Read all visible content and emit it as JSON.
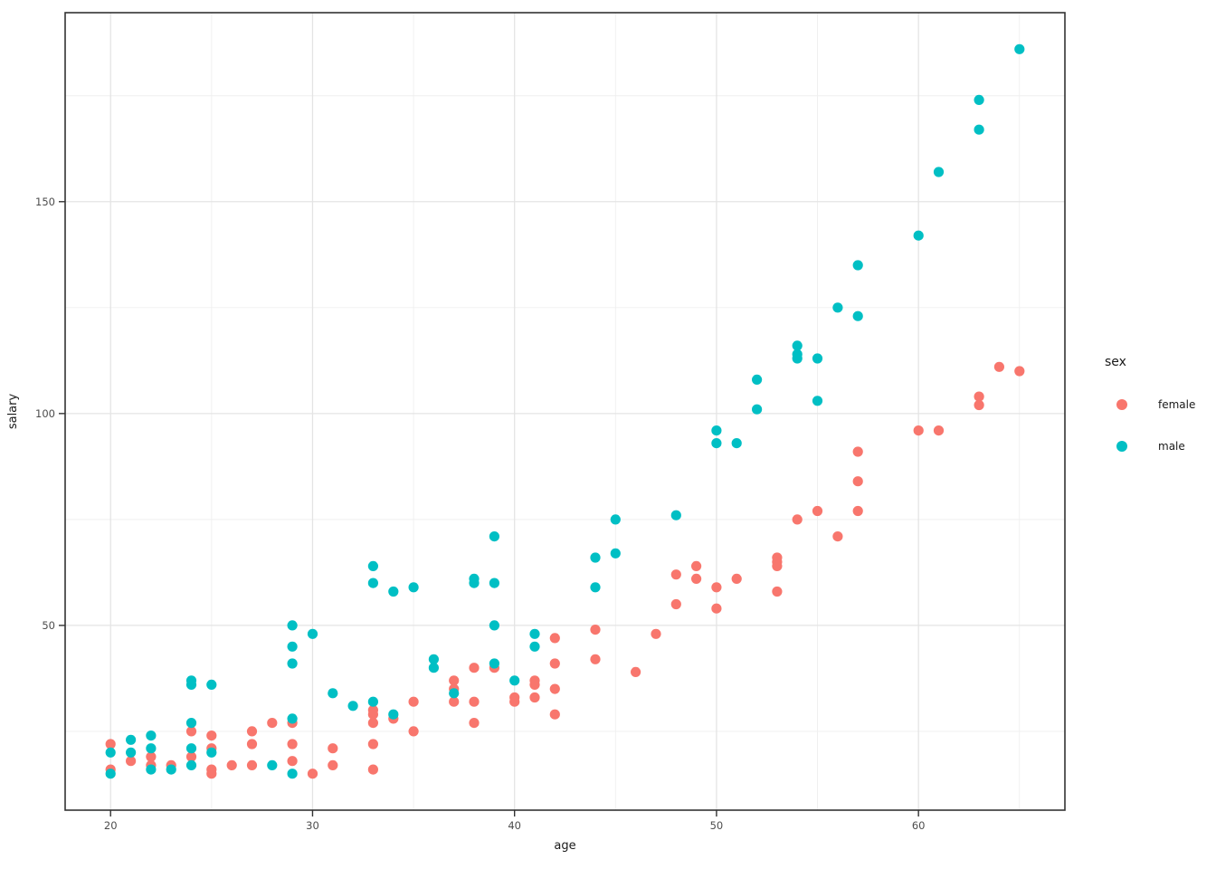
{
  "chart_data": {
    "type": "scatter",
    "title": "",
    "xlabel": "age",
    "ylabel": "salary",
    "x_axis": {
      "ticks": [
        20,
        30,
        40,
        50,
        60
      ],
      "minor_ticks": [
        25,
        35,
        45,
        55,
        65
      ],
      "lim": [
        17.75,
        67.25
      ]
    },
    "y_axis": {
      "ticks": [
        50,
        100,
        150
      ],
      "minor_ticks": [
        25,
        75,
        125,
        175
      ],
      "lim": [
        6.4,
        194.6
      ]
    },
    "grid": "major and minor gridlines on, white panel with dark border",
    "legend": {
      "title": "sex",
      "position": "right"
    },
    "series": [
      {
        "name": "female",
        "color": "#F8766D",
        "points": [
          [
            20,
            22
          ],
          [
            20,
            16
          ],
          [
            21,
            18
          ],
          [
            22,
            19
          ],
          [
            22,
            17
          ],
          [
            23,
            17
          ],
          [
            24,
            25
          ],
          [
            24,
            19
          ],
          [
            25,
            24
          ],
          [
            25,
            21
          ],
          [
            25,
            16
          ],
          [
            25,
            15
          ],
          [
            26,
            17
          ],
          [
            27,
            25
          ],
          [
            27,
            22
          ],
          [
            27,
            17
          ],
          [
            28,
            27
          ],
          [
            29,
            27
          ],
          [
            29,
            22
          ],
          [
            29,
            18
          ],
          [
            30,
            15
          ],
          [
            31,
            21
          ],
          [
            31,
            17
          ],
          [
            33,
            30
          ],
          [
            33,
            29
          ],
          [
            33,
            27
          ],
          [
            33,
            22
          ],
          [
            33,
            16
          ],
          [
            34,
            28
          ],
          [
            35,
            32
          ],
          [
            35,
            25
          ],
          [
            37,
            37
          ],
          [
            37,
            35
          ],
          [
            37,
            32
          ],
          [
            38,
            40
          ],
          [
            38,
            32
          ],
          [
            38,
            27
          ],
          [
            39,
            40
          ],
          [
            40,
            33
          ],
          [
            40,
            32
          ],
          [
            41,
            37
          ],
          [
            41,
            36
          ],
          [
            41,
            33
          ],
          [
            42,
            47
          ],
          [
            42,
            41
          ],
          [
            42,
            35
          ],
          [
            42,
            29
          ],
          [
            44,
            49
          ],
          [
            44,
            42
          ],
          [
            46,
            39
          ],
          [
            47,
            48
          ],
          [
            48,
            62
          ],
          [
            48,
            55
          ],
          [
            49,
            64
          ],
          [
            49,
            61
          ],
          [
            50,
            59
          ],
          [
            50,
            54
          ],
          [
            51,
            61
          ],
          [
            53,
            66
          ],
          [
            53,
            65
          ],
          [
            53,
            64
          ],
          [
            53,
            58
          ],
          [
            54,
            75
          ],
          [
            55,
            77
          ],
          [
            56,
            71
          ],
          [
            57,
            91
          ],
          [
            57,
            84
          ],
          [
            57,
            77
          ],
          [
            60,
            96
          ],
          [
            61,
            96
          ],
          [
            63,
            104
          ],
          [
            63,
            102
          ],
          [
            64,
            111
          ],
          [
            65,
            110
          ]
        ]
      },
      {
        "name": "male",
        "color": "#00BFC4",
        "points": [
          [
            20,
            20
          ],
          [
            20,
            15
          ],
          [
            21,
            23
          ],
          [
            21,
            20
          ],
          [
            22,
            24
          ],
          [
            22,
            21
          ],
          [
            22,
            16
          ],
          [
            23,
            16
          ],
          [
            24,
            37
          ],
          [
            24,
            36
          ],
          [
            24,
            27
          ],
          [
            24,
            21
          ],
          [
            24,
            17
          ],
          [
            25,
            36
          ],
          [
            25,
            20
          ],
          [
            28,
            17
          ],
          [
            29,
            50
          ],
          [
            29,
            45
          ],
          [
            29,
            41
          ],
          [
            29,
            28
          ],
          [
            29,
            15
          ],
          [
            30,
            48
          ],
          [
            31,
            34
          ],
          [
            32,
            31
          ],
          [
            33,
            64
          ],
          [
            33,
            60
          ],
          [
            33,
            32
          ],
          [
            34,
            58
          ],
          [
            34,
            29
          ],
          [
            35,
            59
          ],
          [
            36,
            42
          ],
          [
            36,
            40
          ],
          [
            37,
            34
          ],
          [
            38,
            61
          ],
          [
            38,
            60
          ],
          [
            39,
            71
          ],
          [
            39,
            60
          ],
          [
            39,
            50
          ],
          [
            39,
            41
          ],
          [
            40,
            37
          ],
          [
            41,
            48
          ],
          [
            41,
            45
          ],
          [
            44,
            66
          ],
          [
            44,
            59
          ],
          [
            45,
            75
          ],
          [
            45,
            67
          ],
          [
            48,
            76
          ],
          [
            50,
            96
          ],
          [
            50,
            93
          ],
          [
            51,
            93
          ],
          [
            52,
            108
          ],
          [
            52,
            101
          ],
          [
            54,
            116
          ],
          [
            54,
            114
          ],
          [
            54,
            113
          ],
          [
            55,
            113
          ],
          [
            55,
            103
          ],
          [
            56,
            125
          ],
          [
            57,
            135
          ],
          [
            57,
            123
          ],
          [
            60,
            142
          ],
          [
            61,
            157
          ],
          [
            63,
            174
          ],
          [
            63,
            167
          ],
          [
            65,
            186
          ]
        ]
      }
    ]
  },
  "style": {
    "background": "#FFFFFF",
    "panel_border": "#333333",
    "grid_major": "#E4E4E4",
    "grid_minor": "#EFEFEF",
    "tick_mark": "#333333",
    "tick_label": "#4D4D4D",
    "axis_title": "#1A1A1A"
  }
}
